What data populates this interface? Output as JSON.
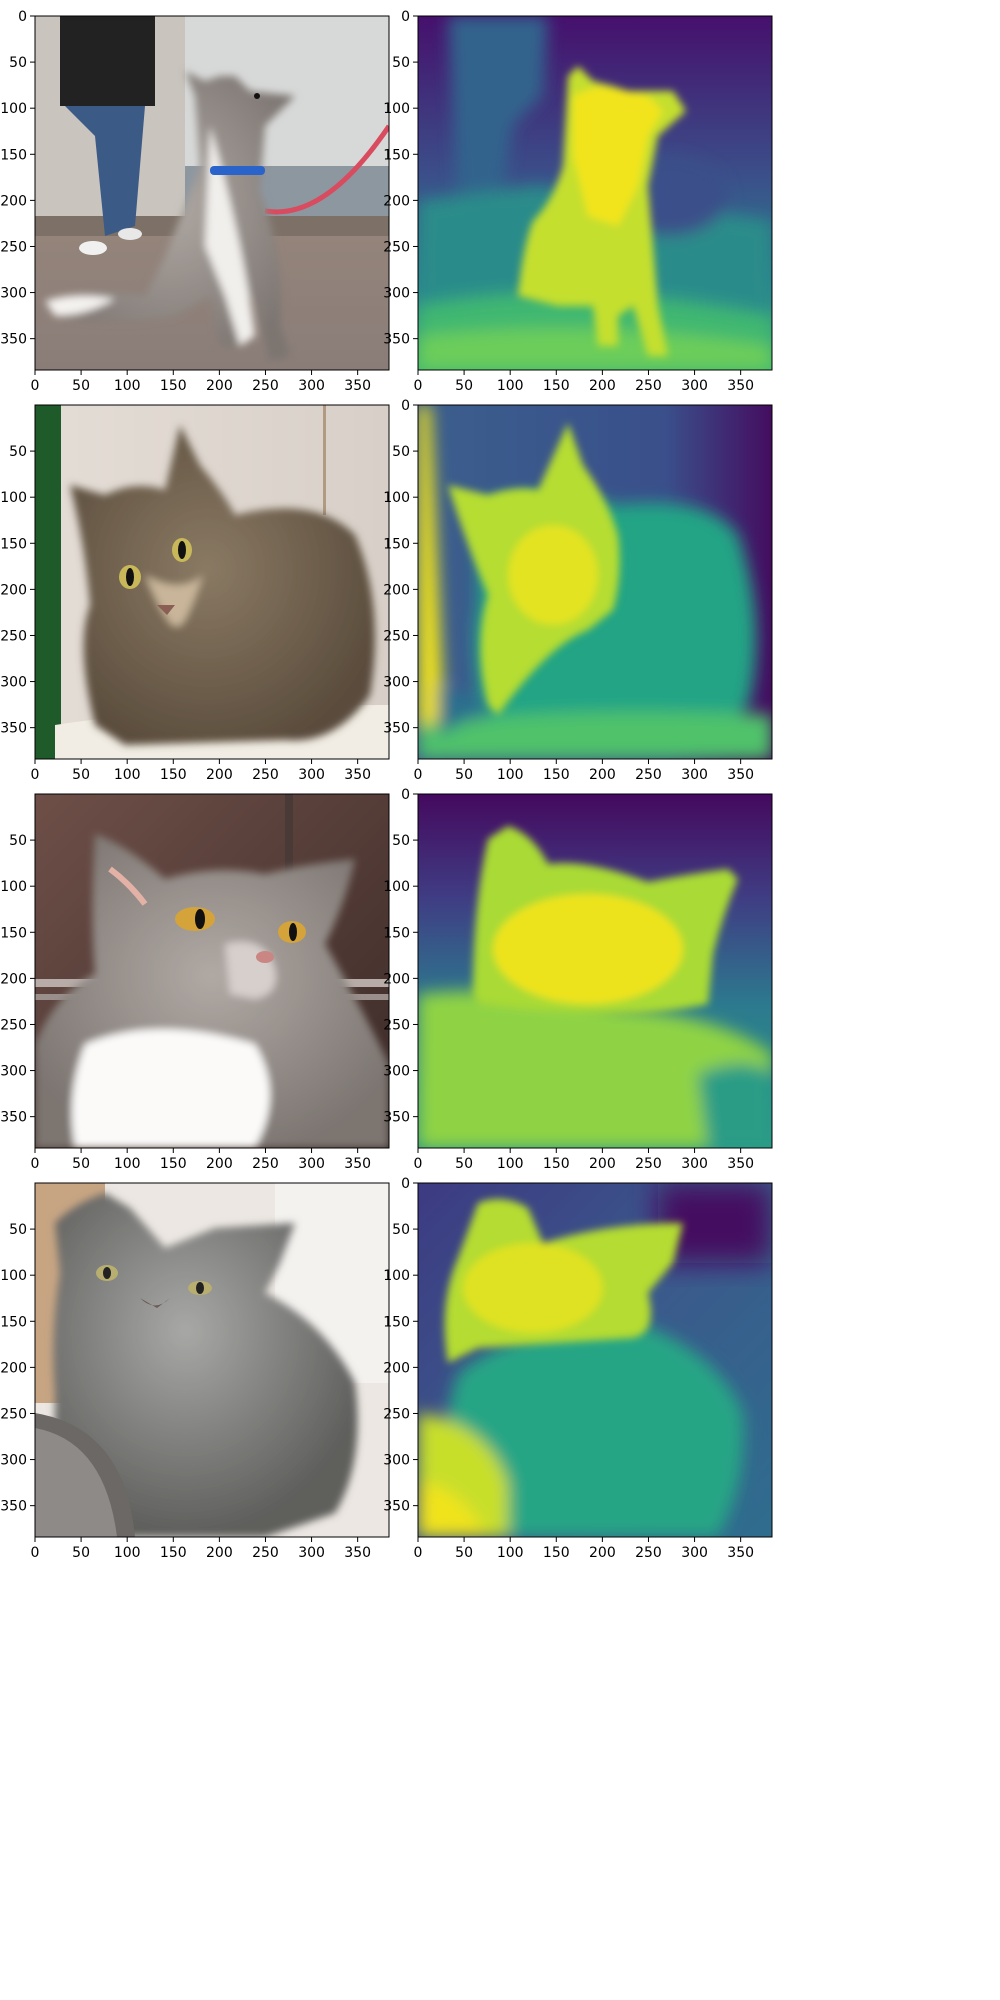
{
  "figure": {
    "rows": 4,
    "cols": 2
  },
  "chart_data": [
    {
      "type": "heatmap",
      "kind": "photo",
      "subject": "dog",
      "row": 0,
      "col": 0,
      "xlim": [
        0,
        384
      ],
      "ylim": [
        384,
        0
      ],
      "xticks": [
        0,
        50,
        100,
        150,
        200,
        250,
        300,
        350
      ],
      "yticks": [
        0,
        50,
        100,
        150,
        200,
        250,
        300,
        350
      ]
    },
    {
      "type": "heatmap",
      "kind": "depth",
      "colormap": "viridis",
      "subject": "dog",
      "row": 0,
      "col": 1,
      "xlim": [
        0,
        384
      ],
      "ylim": [
        384,
        0
      ],
      "xticks": [
        0,
        50,
        100,
        150,
        200,
        250,
        300,
        350
      ],
      "yticks": [
        0,
        50,
        100,
        150,
        200,
        250,
        300,
        350
      ]
    },
    {
      "type": "heatmap",
      "kind": "photo",
      "subject": "cat",
      "row": 1,
      "col": 0,
      "xlim": [
        0,
        384
      ],
      "ylim": [
        384,
        0
      ],
      "xticks": [
        0,
        50,
        100,
        150,
        200,
        250,
        300,
        350
      ],
      "yticks": [
        50,
        100,
        150,
        200,
        250,
        300,
        350
      ]
    },
    {
      "type": "heatmap",
      "kind": "depth",
      "colormap": "viridis",
      "subject": "cat",
      "row": 1,
      "col": 1,
      "xlim": [
        0,
        384
      ],
      "ylim": [
        384,
        0
      ],
      "xticks": [
        0,
        50,
        100,
        150,
        200,
        250,
        300,
        350
      ],
      "yticks": [
        0,
        50,
        100,
        150,
        200,
        250,
        300,
        350
      ]
    },
    {
      "type": "heatmap",
      "kind": "photo",
      "subject": "cat",
      "row": 2,
      "col": 0,
      "xlim": [
        0,
        384
      ],
      "ylim": [
        384,
        0
      ],
      "xticks": [
        0,
        50,
        100,
        150,
        200,
        250,
        300,
        350
      ],
      "yticks": [
        50,
        100,
        150,
        200,
        250,
        300,
        350
      ]
    },
    {
      "type": "heatmap",
      "kind": "depth",
      "colormap": "viridis",
      "subject": "cat",
      "row": 2,
      "col": 1,
      "xlim": [
        0,
        384
      ],
      "ylim": [
        384,
        0
      ],
      "xticks": [
        0,
        50,
        100,
        150,
        200,
        250,
        300,
        350
      ],
      "yticks": [
        0,
        50,
        100,
        150,
        200,
        250,
        300,
        350
      ]
    },
    {
      "type": "heatmap",
      "kind": "photo",
      "subject": "cat",
      "row": 3,
      "col": 0,
      "xlim": [
        0,
        384
      ],
      "ylim": [
        384,
        0
      ],
      "xticks": [
        0,
        50,
        100,
        150,
        200,
        250,
        300,
        350
      ],
      "yticks": [
        50,
        100,
        150,
        200,
        250,
        300,
        350
      ]
    },
    {
      "type": "heatmap",
      "kind": "depth",
      "colormap": "viridis",
      "subject": "cat",
      "row": 3,
      "col": 1,
      "xlim": [
        0,
        384
      ],
      "ylim": [
        384,
        0
      ],
      "xticks": [
        0,
        50,
        100,
        150,
        200,
        250,
        300,
        350
      ],
      "yticks": [
        0,
        50,
        100,
        150,
        200,
        250,
        300,
        350
      ]
    }
  ],
  "colors": {
    "axis": "#000000",
    "viridis_dark": "#440154",
    "viridis_blue": "#3b528b",
    "viridis_teal": "#21918c",
    "viridis_green": "#5ec962",
    "viridis_yellow": "#fde725"
  }
}
